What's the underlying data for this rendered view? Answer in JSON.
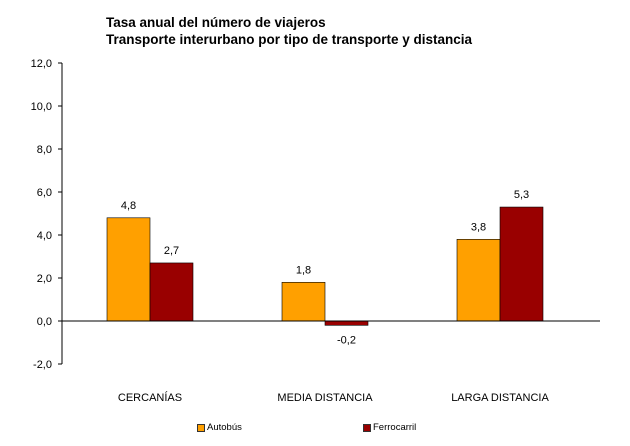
{
  "chart_data": {
    "type": "bar",
    "title": [
      "Tasa anual del número de viajeros",
      "Transporte interurbano por tipo de transporte y distancia"
    ],
    "categories": [
      "CERCANÍAS",
      "MEDIA DISTANCIA",
      "LARGA DISTANCIA"
    ],
    "series": [
      {
        "name": "Autobús",
        "values": [
          4.8,
          1.8,
          3.8
        ],
        "labels": [
          "4,8",
          "1,8",
          "3,8"
        ],
        "color": "#FFA000"
      },
      {
        "name": "Ferrocarril",
        "values": [
          2.7,
          -0.2,
          5.3
        ],
        "labels": [
          "2,7",
          "-0,2",
          "5,3"
        ],
        "color": "#990000"
      }
    ],
    "ylim": [
      -2,
      12
    ],
    "yticks": [
      -2,
      0,
      2,
      4,
      6,
      8,
      10,
      12
    ],
    "ytick_labels": [
      "-2,0",
      "0,0",
      "2,0",
      "4,0",
      "6,0",
      "8,0",
      "10,0",
      "12,0"
    ],
    "xlabel": "",
    "ylabel": "",
    "grid": false,
    "legend_position": "bottom"
  }
}
